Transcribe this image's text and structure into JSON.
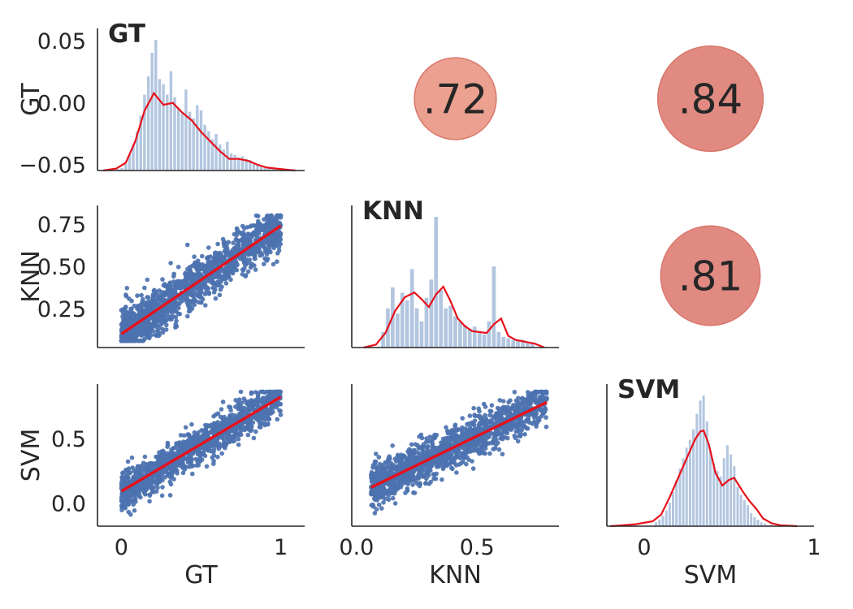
{
  "chart_data": {
    "type": "pairgrid",
    "variables": [
      "GT",
      "KNN",
      "SVM"
    ],
    "colors": {
      "hist": "#b3c6e0",
      "kde": "#e8101a",
      "scatter": "#4c72b0",
      "regression": "#e8101a",
      "bubble_low": "#eba090",
      "bubble_high": "#e08a82",
      "axis": "#262626"
    },
    "diagonal": [
      {
        "name": "GT",
        "title": "GT",
        "ylabel": "GT",
        "yticks": [
          "0.05",
          "0.00",
          "−0.05"
        ],
        "ytick_values": [
          0.05,
          0.0,
          -0.05
        ],
        "ylim": [
          -0.055,
          0.06
        ],
        "xlim": [
          -0.05,
          1.05
        ],
        "bins": [
          0.06,
          0.08,
          0.1,
          0.12,
          0.14,
          0.16,
          0.18,
          0.2,
          0.22,
          0.24,
          0.26,
          0.28,
          0.3,
          0.32,
          0.34,
          0.36,
          0.38,
          0.4,
          0.42,
          0.44,
          0.46,
          0.48,
          0.5,
          0.52,
          0.54,
          0.56,
          0.58,
          0.6,
          0.62,
          0.64,
          0.66,
          0.68,
          0.7,
          0.72,
          0.74,
          0.76,
          0.78,
          0.8,
          0.82,
          0.84,
          0.86,
          0.88,
          0.9,
          0.92
        ],
        "hist": [
          0.01,
          0.02,
          0.05,
          0.12,
          0.2,
          0.3,
          0.42,
          0.58,
          0.72,
          0.9,
          1.0,
          0.7,
          0.66,
          0.58,
          0.76,
          0.56,
          0.48,
          0.44,
          0.62,
          0.45,
          0.4,
          0.5,
          0.46,
          0.35,
          0.3,
          0.24,
          0.28,
          0.2,
          0.16,
          0.22,
          0.13,
          0.12,
          0.1,
          0.11,
          0.09,
          0.08,
          0.06,
          0.04,
          0.03,
          0.02,
          0.02,
          0.01,
          0.01,
          0.01
        ],
        "kde_x": [
          -0.02,
          0.05,
          0.1,
          0.15,
          0.2,
          0.25,
          0.3,
          0.35,
          0.4,
          0.45,
          0.5,
          0.55,
          0.6,
          0.65,
          0.7,
          0.75,
          0.8,
          0.85,
          0.9,
          0.95,
          1.0
        ],
        "kde_y": [
          0.0,
          0.02,
          0.08,
          0.3,
          0.62,
          0.8,
          0.68,
          0.7,
          0.6,
          0.52,
          0.4,
          0.3,
          0.2,
          0.12,
          0.12,
          0.1,
          0.06,
          0.03,
          0.02,
          0.01,
          0.0
        ]
      },
      {
        "name": "KNN",
        "title": "KNN",
        "ylabel": "KNN",
        "yticks": [],
        "ytick_values": [],
        "xlim": [
          -0.02,
          0.84
        ],
        "bins": [
          0.11,
          0.13,
          0.15,
          0.17,
          0.19,
          0.21,
          0.23,
          0.25,
          0.27,
          0.29,
          0.31,
          0.33,
          0.35,
          0.37,
          0.39,
          0.41,
          0.43,
          0.45,
          0.47,
          0.49,
          0.51,
          0.53,
          0.55,
          0.57,
          0.59,
          0.61,
          0.63,
          0.65,
          0.67,
          0.69,
          0.71,
          0.73
        ],
        "hist": [
          0.12,
          0.3,
          0.46,
          0.26,
          0.42,
          0.36,
          0.6,
          0.3,
          0.2,
          0.38,
          0.52,
          1.0,
          0.44,
          0.3,
          0.32,
          0.24,
          0.2,
          0.17,
          0.14,
          0.16,
          0.11,
          0.1,
          0.2,
          0.62,
          0.12,
          0.08,
          0.07,
          0.06,
          0.05,
          0.06,
          0.04,
          0.03
        ],
        "kde_x": [
          0.03,
          0.08,
          0.12,
          0.16,
          0.2,
          0.24,
          0.27,
          0.3,
          0.33,
          0.36,
          0.39,
          0.42,
          0.45,
          0.48,
          0.51,
          0.54,
          0.57,
          0.6,
          0.63,
          0.66,
          0.7,
          0.74,
          0.78
        ],
        "kde_y": [
          0.0,
          0.03,
          0.15,
          0.38,
          0.52,
          0.57,
          0.5,
          0.42,
          0.55,
          0.63,
          0.48,
          0.3,
          0.22,
          0.17,
          0.16,
          0.15,
          0.24,
          0.3,
          0.12,
          0.08,
          0.06,
          0.04,
          0.0
        ]
      },
      {
        "name": "SVM",
        "title": "SVM",
        "ylabel": "SVM",
        "yticks": [],
        "ytick_values": [],
        "xlim": [
          -0.22,
          1.0
        ],
        "bins": [
          0.07,
          0.09,
          0.11,
          0.13,
          0.15,
          0.17,
          0.19,
          0.21,
          0.23,
          0.25,
          0.27,
          0.29,
          0.31,
          0.33,
          0.35,
          0.37,
          0.39,
          0.41,
          0.43,
          0.45,
          0.47,
          0.49,
          0.51,
          0.53,
          0.55,
          0.57,
          0.59,
          0.61,
          0.63,
          0.65,
          0.67,
          0.69,
          0.71,
          0.73,
          0.75
        ],
        "hist": [
          0.03,
          0.05,
          0.08,
          0.12,
          0.18,
          0.26,
          0.35,
          0.44,
          0.52,
          0.6,
          0.66,
          0.74,
          0.86,
          0.96,
          1.0,
          0.8,
          0.58,
          0.48,
          0.42,
          0.38,
          0.52,
          0.62,
          0.55,
          0.46,
          0.3,
          0.24,
          0.2,
          0.16,
          0.1,
          0.07,
          0.05,
          0.03,
          0.02,
          0.01,
          0.01
        ],
        "kde_x": [
          -0.2,
          -0.05,
          0.05,
          0.1,
          0.15,
          0.2,
          0.25,
          0.3,
          0.33,
          0.35,
          0.38,
          0.42,
          0.46,
          0.5,
          0.53,
          0.58,
          0.62,
          0.66,
          0.7,
          0.75,
          0.8,
          0.9
        ],
        "kde_y": [
          0.0,
          0.02,
          0.05,
          0.12,
          0.3,
          0.5,
          0.7,
          0.9,
          0.98,
          0.99,
          0.85,
          0.55,
          0.42,
          0.48,
          0.5,
          0.36,
          0.26,
          0.18,
          0.08,
          0.03,
          0.01,
          0.0
        ]
      }
    ],
    "correlations": [
      {
        "row": 0,
        "col": 1,
        "label": ".72",
        "value": 0.72
      },
      {
        "row": 0,
        "col": 2,
        "label": ".84",
        "value": 0.84
      },
      {
        "row": 1,
        "col": 2,
        "label": ".81",
        "value": 0.81
      }
    ],
    "scatter_panels": [
      {
        "row": 1,
        "col": 0,
        "x_var": "GT",
        "y_var": "KNN",
        "xlim": [
          -0.15,
          1.15
        ],
        "ylim": [
          0.02,
          0.86
        ],
        "x_range": [
          0.0,
          1.0
        ],
        "y_range": [
          0.06,
          0.8
        ],
        "fit": [
          [
            0.0,
            0.1
          ],
          [
            1.0,
            0.74
          ]
        ],
        "spread": 0.07,
        "seed": 11,
        "n": 1400
      },
      {
        "row": 2,
        "col": 0,
        "x_var": "GT",
        "y_var": "SVM",
        "xlim": [
          -0.15,
          1.15
        ],
        "ylim": [
          -0.18,
          0.92
        ],
        "x_range": [
          0.0,
          1.0
        ],
        "y_range": [
          -0.12,
          0.86
        ],
        "fit": [
          [
            0.0,
            0.09
          ],
          [
            1.0,
            0.82
          ]
        ],
        "spread": 0.07,
        "seed": 23,
        "n": 1400
      },
      {
        "row": 2,
        "col": 1,
        "x_var": "KNN",
        "y_var": "SVM",
        "xlim": [
          -0.02,
          0.84
        ],
        "ylim": [
          -0.18,
          0.92
        ],
        "x_range": [
          0.06,
          0.79
        ],
        "y_range": [
          -0.12,
          0.86
        ],
        "fit": [
          [
            0.06,
            0.12
          ],
          [
            0.79,
            0.78
          ]
        ],
        "spread": 0.08,
        "seed": 37,
        "n": 1400
      }
    ],
    "y_axes": [
      {
        "row": 0,
        "label": "GT",
        "ticks": [
          "0.05",
          "0.00",
          "−0.05"
        ],
        "values": [
          0.05,
          0.0,
          -0.05
        ],
        "ylim": [
          -0.055,
          0.06
        ]
      },
      {
        "row": 1,
        "label": "KNN",
        "ticks": [
          "0.75",
          "0.50",
          "0.25"
        ],
        "values": [
          0.75,
          0.5,
          0.25
        ],
        "ylim": [
          0.02,
          0.86
        ]
      },
      {
        "row": 2,
        "label": "SVM",
        "ticks": [
          "0.5",
          "0.0"
        ],
        "values": [
          0.5,
          0.0
        ],
        "ylim": [
          -0.18,
          0.92
        ]
      }
    ],
    "x_axes": [
      {
        "col": 0,
        "label": "GT",
        "ticks": [
          "0",
          "1"
        ],
        "values": [
          0,
          1
        ],
        "xlim": [
          -0.15,
          1.15
        ]
      },
      {
        "col": 1,
        "label": "KNN",
        "ticks": [
          "0.0",
          "0.5"
        ],
        "values": [
          0.0,
          0.5
        ],
        "xlim": [
          -0.02,
          0.84
        ]
      },
      {
        "col": 2,
        "label": "SVM",
        "ticks": [
          "0",
          "1"
        ],
        "values": [
          0,
          1
        ],
        "xlim": [
          -0.22,
          1.0
        ]
      }
    ]
  }
}
